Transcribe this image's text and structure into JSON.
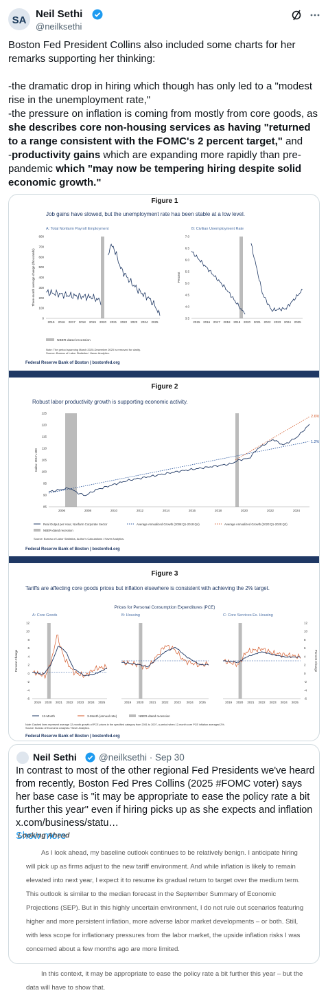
{
  "post": {
    "author": "Neil Sethi",
    "handle": "@neilksethi",
    "intro": [
      {
        "text": "Boston Fed President Collins also included some charts for her remarks supporting her thinking:"
      }
    ],
    "items": [
      [
        {
          "text": "-the dramatic drop in hiring which though has only led to a \"modest rise in the unemployment rate,\""
        }
      ],
      [
        {
          "text": "-the pressure on inflation is coming from mostly from core goods, as "
        },
        {
          "text": "she describes core non-housing services as having \"returned to a range consistent with the FOMC's 2 percent target,\"",
          "bold": true
        },
        {
          "text": " and"
        }
      ],
      [
        {
          "text": "-"
        },
        {
          "text": "productivity gains",
          "bold": true
        },
        {
          "text": " which are expanding more rapidly than pre-pandemic "
        },
        {
          "text": "which \"may now be tempering hiring despite solid economic growth.\"",
          "bold": true
        }
      ]
    ]
  },
  "figures": [
    {
      "title": "Figure 1",
      "subtitle": "Job gains have slowed, but the unemployment rate has been stable at a low level.",
      "panels": [
        {
          "title": "A: Total Nonfarm Payroll Employment",
          "y_label": "Three-month average change (thousands)",
          "yticks": [
            "800",
            "700",
            "600",
            "500",
            "400",
            "300",
            "200",
            "100",
            "0"
          ],
          "xticks": [
            "2015",
            "2016",
            "2017",
            "2018",
            "2019",
            "2020",
            "2021",
            "2022",
            "2023",
            "2024",
            "2025"
          ]
        },
        {
          "title": "B: Civilian Unemployment Rate",
          "y_label": "Percent",
          "yticks": [
            "7.0",
            "6.5",
            "6.0",
            "5.5",
            "5.0",
            "4.5",
            "4.0",
            "3.5"
          ],
          "xticks": [
            "2015",
            "2016",
            "2017",
            "2018",
            "2019",
            "2020",
            "2021",
            "2022",
            "2023",
            "2024",
            "2025"
          ]
        }
      ],
      "legend": [
        "NBER-dated recession"
      ],
      "notes": [
        "Note: The period spanning March 2020-December 2020 is removed for clarity.",
        "Source: Bureau of Labor Statistics / Haver Analytics."
      ],
      "footer": "Federal Reserve Bank of Boston | bostonfed.org"
    },
    {
      "title": "Figure 2",
      "subtitle": "Robust labor productivity growth is supporting economic activity.",
      "panels": [
        {
          "y_label": "Index: 2017=100",
          "yticks": [
            "125",
            "120",
            "115",
            "110",
            "105",
            "100",
            "95",
            "90",
            "85"
          ],
          "xticks": [
            "2006",
            "2008",
            "2010",
            "2012",
            "2014",
            "2016",
            "2018",
            "2020",
            "2022",
            "2024"
          ]
        }
      ],
      "annotations": [
        "2.6%",
        "1.2%"
      ],
      "legend": [
        "Real Output per Hour, Nonfarm Corporate Sector",
        "Average Annualized Growth (2006:Q1-2019:Q4)",
        "Average Annualized Growth (2020:Q1-2025:Q2)",
        "NBER-dated recession"
      ],
      "notes": [
        "Source: Bureau of Labor Statistics, Author's Calculations / Haver Analytics."
      ],
      "footer": "Federal Reserve Bank of Boston | bostonfed.org"
    },
    {
      "title": "Figure 3",
      "subtitle": "Tariffs are affecting core goods prices but inflation elsewhere is consistent with achieving the 2% target.",
      "chart_title": "Prices for Personal Consumption Expenditures (PCE)",
      "y_label": "Percent Change",
      "yticks": [
        "12",
        "10",
        "8",
        "6",
        "4",
        "2",
        "0",
        "-2",
        "-4",
        "-6"
      ],
      "panels": [
        {
          "title": "A: Core Goods",
          "xticks": [
            "2019",
            "2020",
            "2021",
            "2022",
            "2023",
            "2024",
            "2025"
          ]
        },
        {
          "title": "B: Housing",
          "xticks": [
            "2019",
            "2020",
            "2021",
            "2022",
            "2023",
            "2024",
            "2025"
          ]
        },
        {
          "title": "C: Core Services Ex. Housing",
          "xticks": [
            "2019",
            "2020",
            "2021",
            "2022",
            "2023",
            "2024",
            "2025"
          ]
        }
      ],
      "legend": [
        "12-Month",
        "3-Month (annual rate)",
        "NBER-dated recession"
      ],
      "notes": [
        "Note: Dashed lines represent average 12-month growth of PCE prices in the specified category from 2001 to 2007, a period when 12-month core PCE inflation averaged 2%.",
        "Source: Bureau of Economic Analysis / Haver Analytics."
      ],
      "footer": "Federal Reserve Bank of Boston | bostonfed.org"
    }
  ],
  "quoted_post": {
    "author": "Neil Sethi",
    "handle": "@neilksethi",
    "date": "Sep 30",
    "text": "In contrast to most of the other regional Fed Presidents we've heard from recently, Boston Fed Pres Collins (2025 #FOMC voter) says her base case is \"it may be appropriate to ease the policy rate a bit further this year\" even if hiring picks up as she expects and inflation ",
    "link": "x.com/business/statu…",
    "show_more": "Show more",
    "document": {
      "heading": "Looking Ahead",
      "paragraphs": [
        "As I look ahead, my baseline outlook continues to be relatively benign. I anticipate hiring will pick up as firms adjust to the new tariff environment. And while inflation is likely to remain elevated into next year, I expect it to resume its gradual return to target over the medium term. This outlook is similar to the median forecast in the September Summary of Economic Projections (SEP). But in this highly uncertain environment, I do not rule out scenarios featuring higher and more persistent inflation, more adverse labor market developments – or both. Still, with less scope for inflationary pressures from the labor market, the upside inflation risks I was concerned about a few months ago are more limited.",
        "In this context, it may be appropriate to ease the policy rate a bit further this year – but the data will have to show that."
      ]
    }
  }
}
